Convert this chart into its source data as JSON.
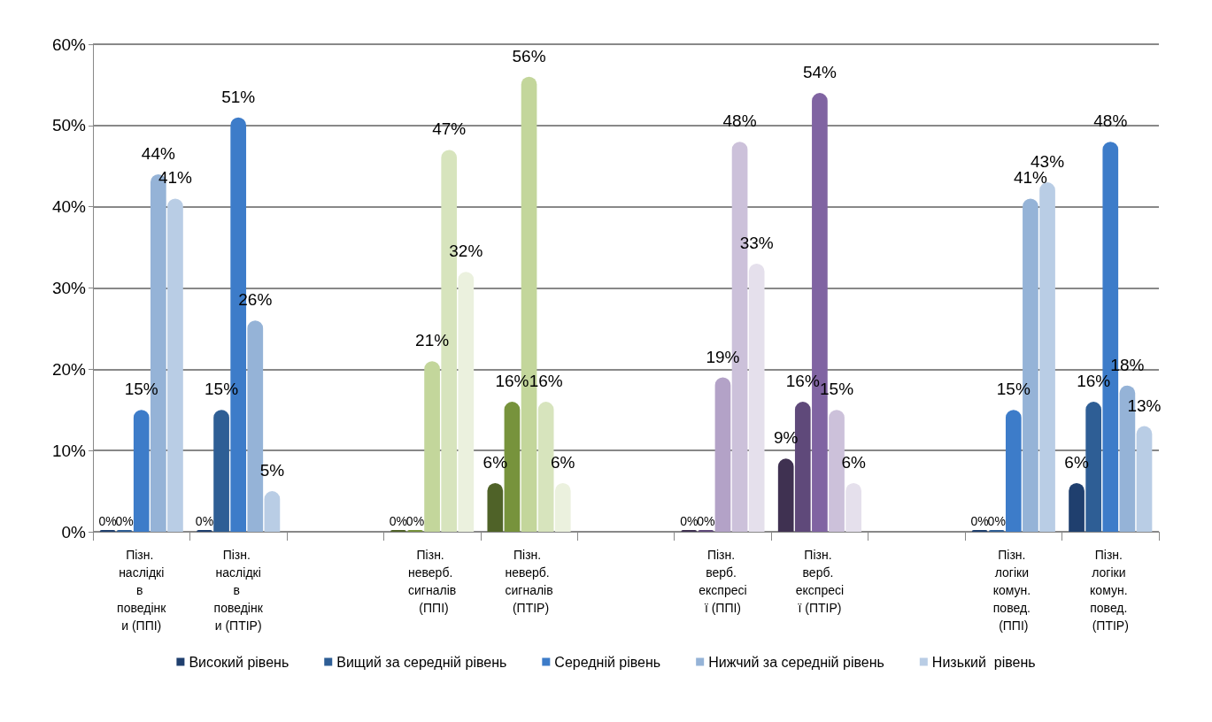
{
  "chart_data": {
    "type": "bar",
    "categories": [
      "Пізн. наслідків поведінки (ППІ)",
      "Пізн. наслідків поведінки (ПТІР)",
      null,
      "Пізн. неверб. сигналів (ППІ)",
      "Пізн. неверб. сигналів (ПТІР)",
      null,
      "Пізн. верб. експресії (ППІ)",
      "Пізн. верб. експресії (ПТІР)",
      null,
      "Пізн. логіки комун. повед. (ППІ)",
      "Пізн. логіки комун. повед. (ПТІР)"
    ],
    "series": [
      {
        "name": "Високий рівень",
        "color": "#1f3f6e",
        "values": [
          0,
          0,
          null,
          0,
          6,
          null,
          0,
          9,
          null,
          0,
          6
        ],
        "colors": [
          "#1f3f6e",
          "#1f3f6e",
          null,
          "#4f6228",
          "#4f6228",
          null,
          "#3f3151",
          "#3f3151",
          null,
          "#1f3f6e",
          "#1f3f6e"
        ],
        "value_labels": [
          "0%",
          "0%",
          null,
          "0%",
          "6%",
          null,
          "0%",
          "9%",
          null,
          "0%",
          "6%"
        ]
      },
      {
        "name": "Вищий за середній рівень",
        "color": "#2e5e95",
        "values": [
          0,
          15,
          null,
          0,
          16,
          null,
          0,
          16,
          null,
          0,
          16
        ],
        "colors": [
          "#2e5e95",
          "#2e5e95",
          null,
          "#77933c",
          "#77933c",
          null,
          "#5f497a",
          "#5f497a",
          null,
          "#2e5e95",
          "#2e5e95"
        ],
        "value_labels": [
          "0%",
          "15%",
          null,
          "0%",
          "16%",
          null,
          "0%",
          "16%",
          null,
          "0%",
          "16%"
        ]
      },
      {
        "name": "Середній рівень",
        "color": "#3d7cc9",
        "values": [
          15,
          51,
          null,
          21,
          56,
          null,
          19,
          54,
          null,
          15,
          48
        ],
        "colors": [
          "#3d7cc9",
          "#3d7cc9",
          null,
          "#c3d69b",
          "#c3d69b",
          null,
          "#b3a2c7",
          "#8064a2",
          null,
          "#3d7cc9",
          "#3d7cc9"
        ],
        "value_labels": [
          "15%",
          "51%",
          null,
          "21%",
          "56%",
          null,
          "19%",
          "54%",
          null,
          "15%",
          "48%"
        ]
      },
      {
        "name": "Нижчий за середній рівень",
        "color": "#95b3d7",
        "values": [
          44,
          26,
          null,
          47,
          16,
          null,
          48,
          15,
          null,
          41,
          18
        ],
        "colors": [
          "#95b3d7",
          "#95b3d7",
          null,
          "#d7e4bd",
          "#d7e4bd",
          null,
          "#ccc1da",
          "#ccc1da",
          null,
          "#95b3d7",
          "#95b3d7"
        ],
        "value_labels": [
          "44%",
          "26%",
          null,
          "47%",
          "16%",
          null,
          "48%",
          "15%",
          null,
          "41%",
          "18%"
        ]
      },
      {
        "name": "Низький  рівень",
        "color": "#b9cde5",
        "values": [
          41,
          5,
          null,
          32,
          6,
          null,
          33,
          6,
          null,
          43,
          13
        ],
        "colors": [
          "#b9cde5",
          "#b9cde5",
          null,
          "#ebf1de",
          "#ebf1de",
          null,
          "#e5e0ec",
          "#e5e0ec",
          null,
          "#b9cde5",
          "#b9cde5"
        ],
        "value_labels": [
          "41%",
          "5%",
          null,
          "32%",
          "6%",
          null,
          "33%",
          "6%",
          null,
          "43%",
          "13%"
        ]
      }
    ],
    "ylim": [
      0,
      60
    ],
    "yticks": [
      {
        "value": 0,
        "label": "0%"
      },
      {
        "value": 10,
        "label": "10%"
      },
      {
        "value": 20,
        "label": "20%"
      },
      {
        "value": 30,
        "label": "30%"
      },
      {
        "value": 40,
        "label": "40%"
      },
      {
        "value": 50,
        "label": "50%"
      },
      {
        "value": 60,
        "label": "60%"
      }
    ],
    "grid": "y",
    "legend": "bottom"
  }
}
